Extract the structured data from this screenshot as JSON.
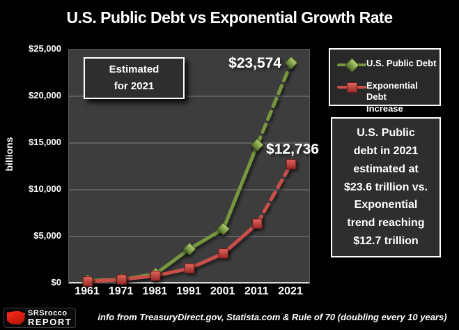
{
  "title": "U.S. Public Debt vs Exponential Growth Rate",
  "chart_data": {
    "type": "line",
    "x": [
      1961,
      1971,
      1981,
      1991,
      2001,
      2011,
      2021
    ],
    "x_ticks": [
      "1961",
      "1971",
      "1981",
      "1991",
      "2001",
      "2011",
      "2021"
    ],
    "series": [
      {
        "name": "U.S. Public Debt",
        "color": "#77963e",
        "marker": "diamond",
        "marker_gradient": [
          "#b7d06f",
          "#53702a"
        ],
        "marker_stroke": "#3f541e",
        "values": [
          289,
          398,
          998,
          3665,
          5807,
          14790,
          23574
        ],
        "dashed_from_index": 5,
        "point_label": {
          "text": "$23,574",
          "anchor": "end",
          "dx": -14,
          "dy": 7
        }
      },
      {
        "name": "Exponential Debt Increase",
        "color": "#c94f4b",
        "marker": "square",
        "marker_gradient": [
          "#e4655e",
          "#962a26"
        ],
        "marker_stroke": "#6e1d1a",
        "values": [
          199,
          398,
          796,
          1592,
          3184,
          6368,
          12736
        ],
        "dashed_from_index": 5,
        "point_label": {
          "text": "$12,736",
          "anchor": "middle",
          "dx": 2,
          "dy": -15
        }
      }
    ],
    "ylabel": "billions",
    "ylim": [
      0,
      25000
    ],
    "y_ticks": [
      "$25,000",
      "$20,000",
      "$15,000",
      "$10,000",
      "$5,000",
      "$0"
    ],
    "y_tick_values": [
      25000,
      20000,
      15000,
      10000,
      5000,
      0
    ],
    "grid_values": [
      20000,
      15000,
      10000,
      5000
    ],
    "grid": "horizontal",
    "legend_position": "top-right",
    "annotations": [
      "Estimated for 2021"
    ]
  },
  "colors": {
    "background": "#000000",
    "plot_background": "#3d3d3d",
    "gridline": "#7f7f7f",
    "axis_line": "#d9d9d9",
    "debt_green": "#77963e",
    "exponential_red": "#c94f4b",
    "logo_red": "#e32119"
  },
  "annotation_box": {
    "text": "Estimated\nfor 2021"
  },
  "legend": {
    "items": [
      {
        "label": "U.S. Public Debt",
        "marker": "diamond",
        "color": "#77963e"
      },
      {
        "label": "Exponential Debt\nIncrease",
        "marker": "square",
        "color": "#c94f4b"
      }
    ]
  },
  "note_box": {
    "text": "U.S. Public\ndebt in 2021\nestimated at\n$23.6 trillion vs.\nExponential\ntrend reaching\n$12.7 trillion"
  },
  "footer": {
    "logo_line1": "SRSrocco",
    "logo_line2": "REPORT",
    "info": "info from TreasuryDirect.gov, Statista.com & Rule of 70 (doubling every 10 years)"
  }
}
